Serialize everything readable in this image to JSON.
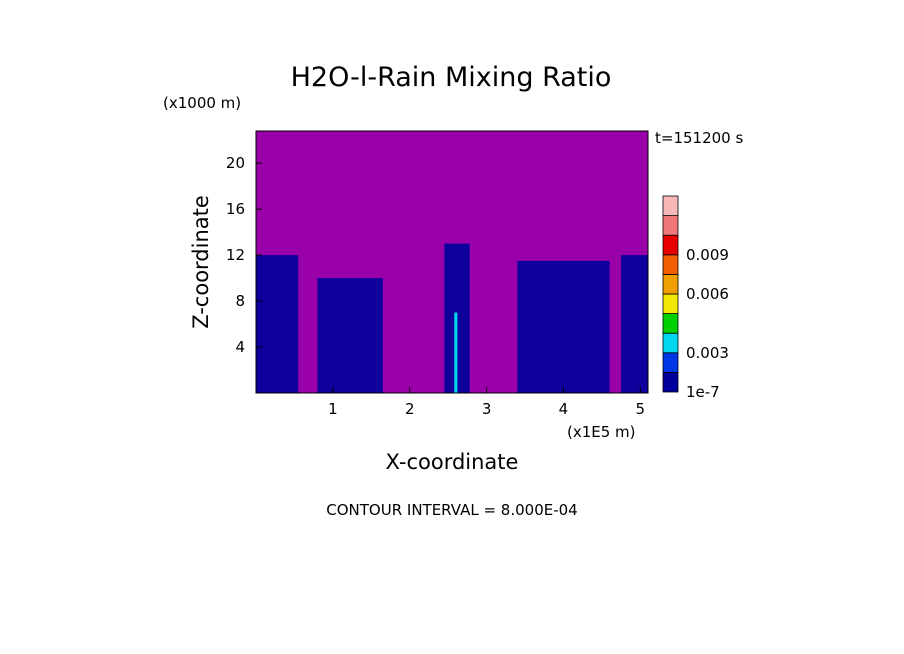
{
  "chart_data": {
    "type": "heatmap",
    "title": "H2O-l-Rain Mixing Ratio",
    "xlabel": "X-coordinate",
    "ylabel": "Z-coordinate",
    "x_unit": "(x1E5 m)",
    "y_unit": "(x1000 m)",
    "time_label": "t=151200 s",
    "footer": "CONTOUR INTERVAL = 8.000E-04",
    "xlim": [
      0,
      5.1
    ],
    "ylim": [
      0,
      22.8
    ],
    "x_ticks": [
      "1",
      "2",
      "3",
      "4",
      "5"
    ],
    "x_tick_values": [
      1,
      2,
      3,
      4,
      5
    ],
    "y_ticks": [
      "4",
      "8",
      "12",
      "16",
      "20"
    ],
    "y_tick_values": [
      4,
      8,
      12,
      16,
      20
    ],
    "background_color": "#9a00aa",
    "colorbar": {
      "colors": [
        "#00009a",
        "#0038e8",
        "#00d8f0",
        "#00d000",
        "#f0e800",
        "#f0a000",
        "#f06000",
        "#e80000",
        "#f07878",
        "#f8b8b8"
      ],
      "labels": [
        "1e-7",
        "0.003",
        "0.006",
        "0.009"
      ]
    },
    "regions": [
      {
        "x": [
          0,
          0.55
        ],
        "z_top": 12,
        "level": "1e-7"
      },
      {
        "x": [
          0.8,
          1.65
        ],
        "z_top": 10,
        "level": "1e-7"
      },
      {
        "x": [
          2.45,
          2.78
        ],
        "z_top": 13,
        "level": "1e-7"
      },
      {
        "x": [
          3.4,
          4.6
        ],
        "z_top": 11.5,
        "level": "1e-7"
      },
      {
        "x": [
          4.75,
          5.1
        ],
        "z_top": 12,
        "level": "1e-7"
      },
      {
        "x": [
          2.58,
          2.62
        ],
        "z_top": 7,
        "level": "0.003"
      }
    ]
  }
}
